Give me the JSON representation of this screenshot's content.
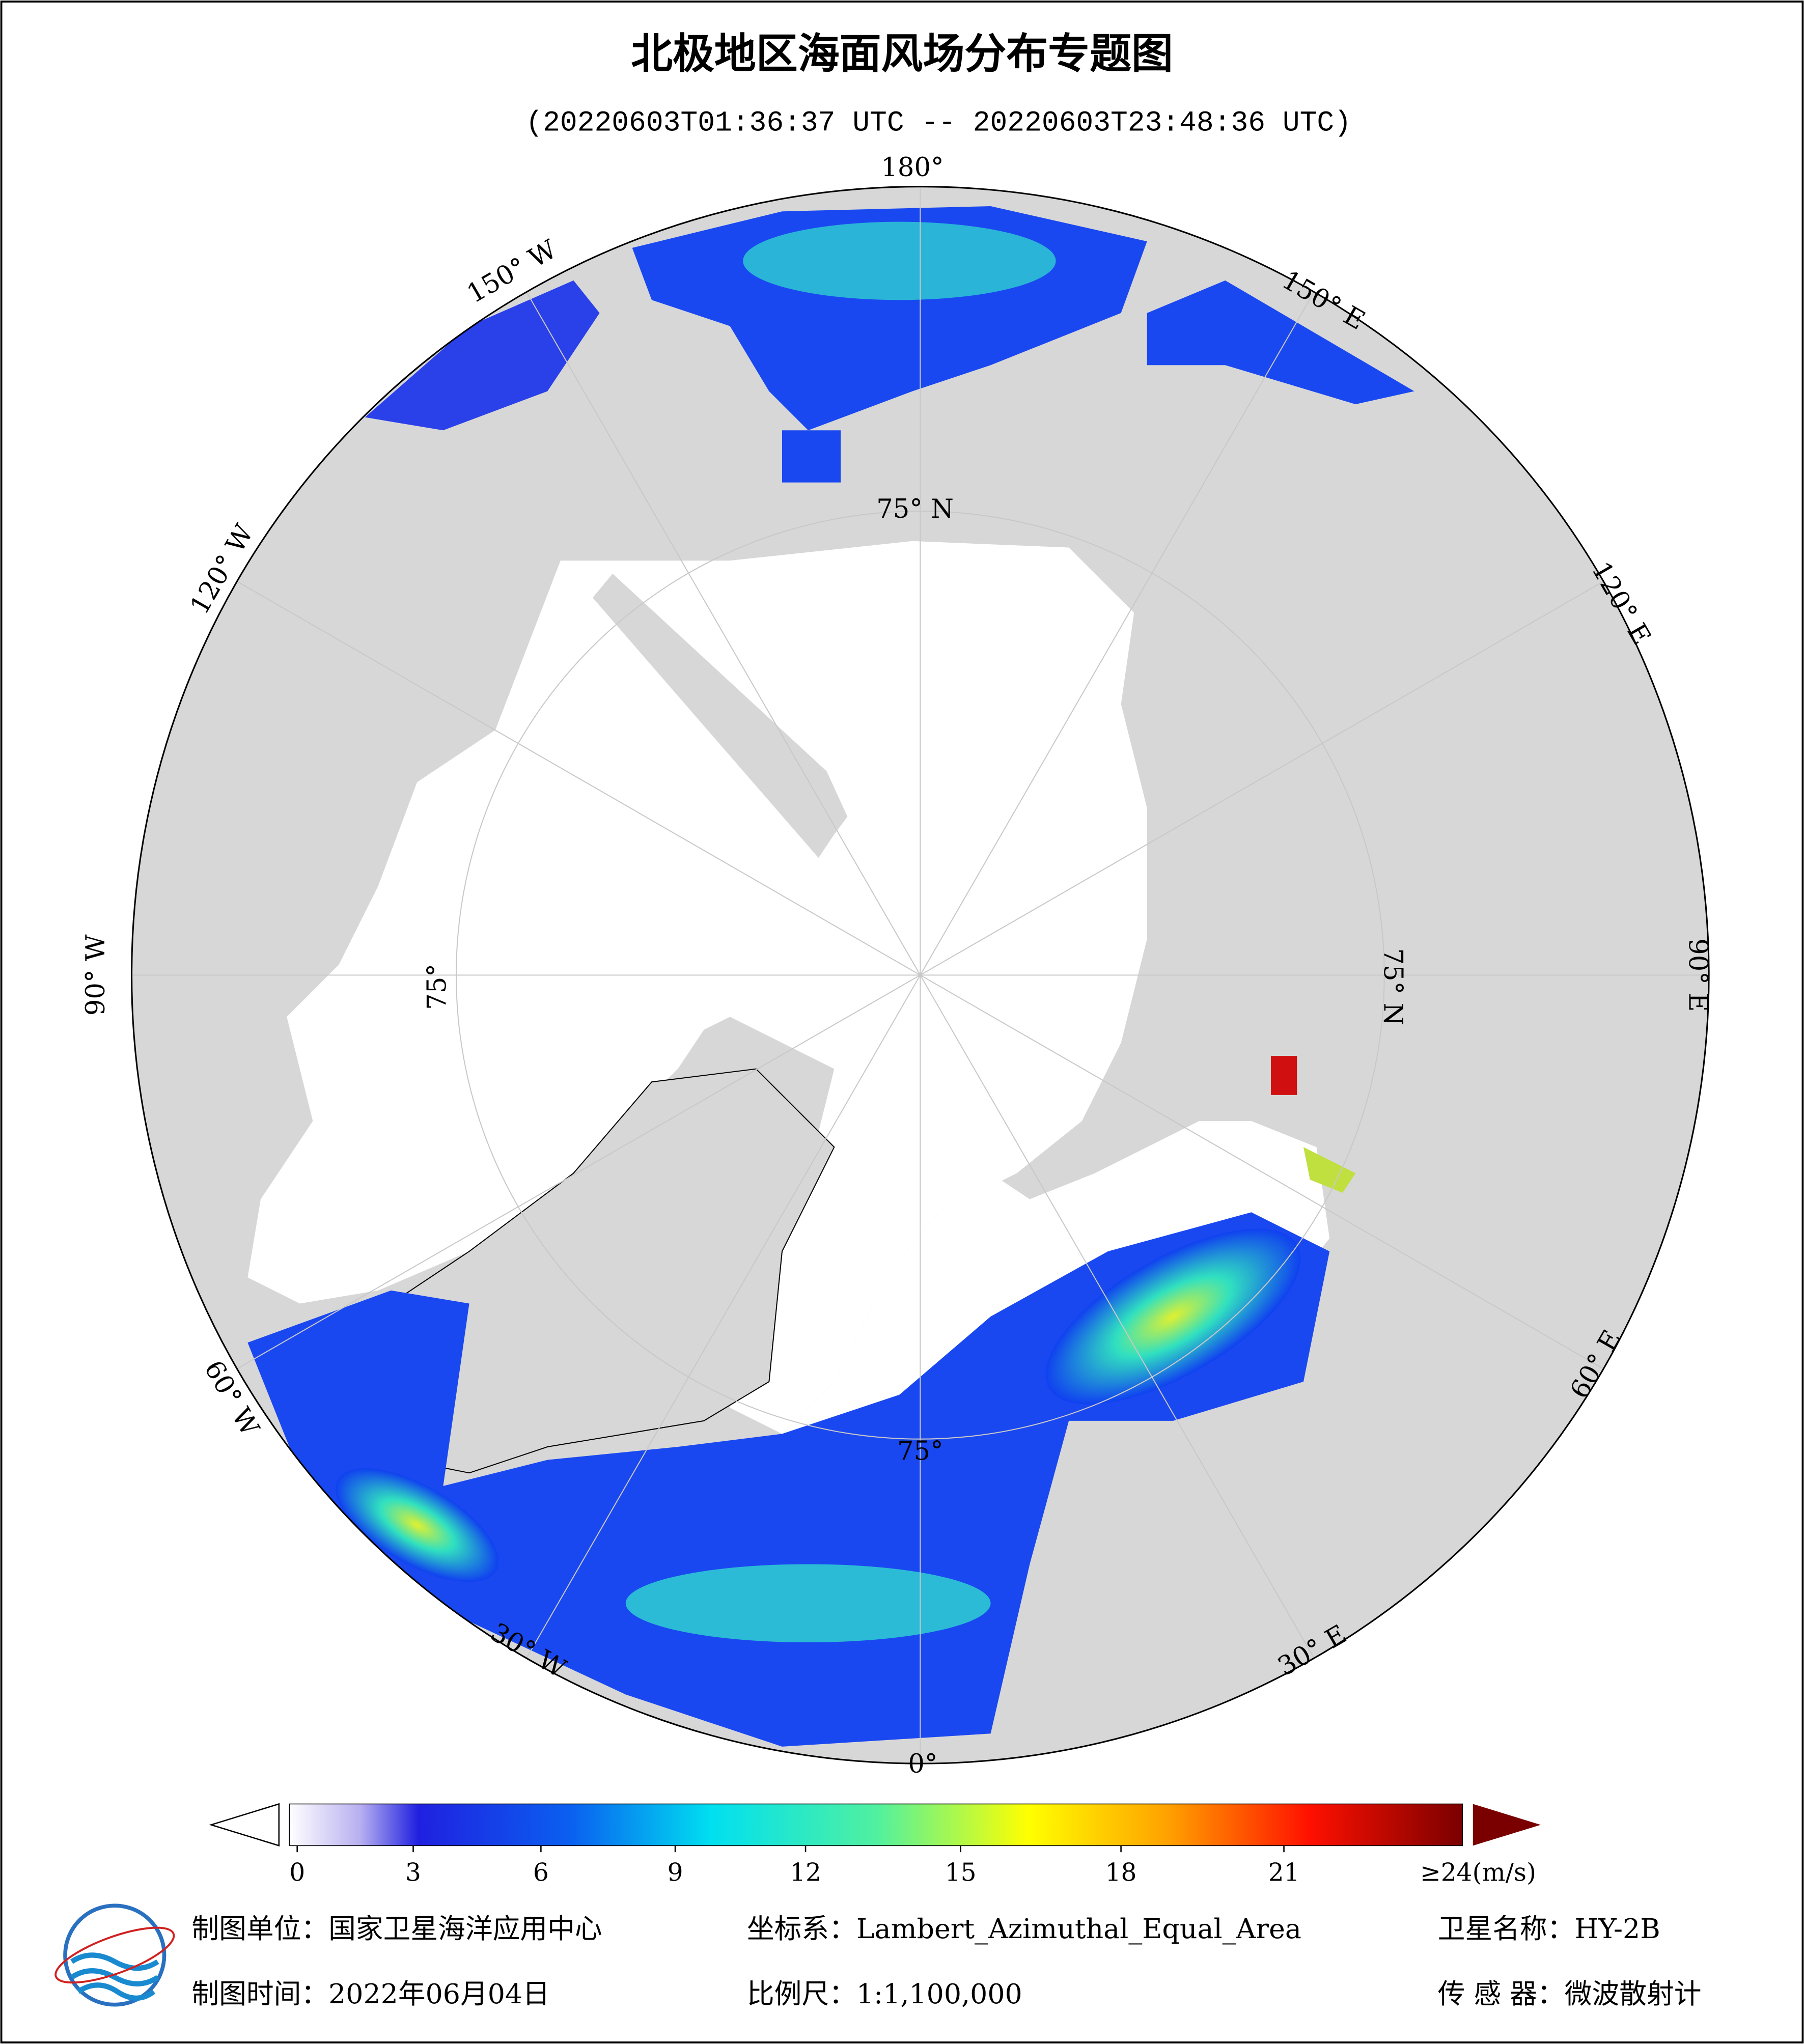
{
  "header": {
    "title": "北极地区海面风场分布专题图",
    "time_range": "(20220603T01:36:37 UTC -- 20220603T23:48:36 UTC)"
  },
  "map": {
    "graticule_labels": [
      "180°",
      "150° E",
      "120° E",
      "90° E",
      "60° E",
      "30° E",
      "0°",
      "30° W",
      "60° W",
      "90° W",
      "120° W",
      "150° W"
    ],
    "parallel_labels": [
      "75° N",
      "75° N",
      "75°",
      "75°"
    ]
  },
  "colorbar": {
    "ticks": [
      0,
      3,
      6,
      9,
      12,
      15,
      18,
      21
    ],
    "max_label": "≥24(m/s)"
  },
  "footer": {
    "producer": "制图单位：国家卫星海洋应用中心",
    "projection": "坐标系：Lambert_Azimuthal_Equal_Area",
    "satellite": "卫星名称：HY-2B",
    "date": "制图时间：2022年06月04日",
    "scale": "比例尺：1:1,100,000",
    "sensor": "传 感 器：微波散射计"
  }
}
